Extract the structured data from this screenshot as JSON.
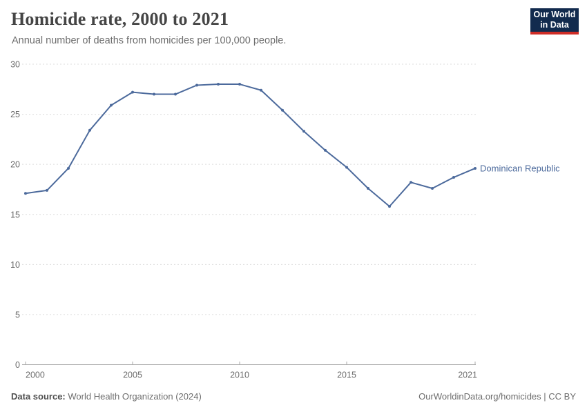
{
  "logo": {
    "line1": "Our World",
    "line2": "in Data",
    "bg_color": "#122B4E",
    "accent_color": "#CF2D27"
  },
  "footer": {
    "source_label": "Data source:",
    "source_value": "World Health Organization (2024)",
    "credit": "OurWorldinData.org/homicides | CC BY"
  },
  "chart_data": {
    "type": "line",
    "title": "Homicide rate, 2000 to 2021",
    "subtitle": "Annual number of deaths from homicides per 100,000 people.",
    "xlabel": "",
    "ylabel": "",
    "xlim": [
      2000,
      2021
    ],
    "ylim": [
      0,
      30
    ],
    "xticks": [
      2000,
      2005,
      2010,
      2015,
      2021
    ],
    "yticks": [
      0,
      5,
      10,
      15,
      20,
      25,
      30
    ],
    "grid": "horizontal-dashed",
    "legend_position": "end-of-line",
    "colors": {
      "grid": "#dcdcdc",
      "axis": "#a8a8a8",
      "tick_text": "#6b6b6b"
    },
    "series": [
      {
        "name": "Dominican Republic",
        "color": "#4C6A9C",
        "x": [
          2000,
          2001,
          2002,
          2003,
          2004,
          2005,
          2006,
          2007,
          2008,
          2009,
          2010,
          2011,
          2012,
          2013,
          2014,
          2015,
          2016,
          2017,
          2018,
          2019,
          2020,
          2021
        ],
        "values": [
          17.1,
          17.4,
          19.6,
          23.4,
          25.9,
          27.2,
          27.0,
          27.0,
          27.9,
          28.0,
          28.0,
          27.4,
          25.4,
          23.3,
          21.4,
          19.7,
          17.6,
          15.8,
          18.2,
          17.6,
          18.7,
          19.6
        ]
      }
    ]
  }
}
